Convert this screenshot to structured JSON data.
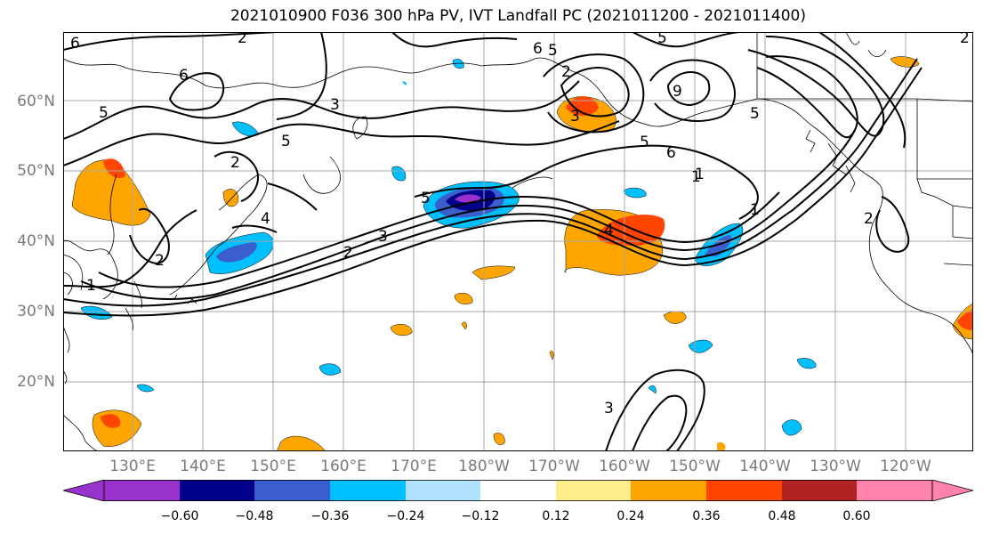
{
  "title": "2021010900 F036 300 hPa PV, IVT Landfall PC (2021011200 - 2021011400)",
  "lat_labels": [
    "60°N",
    "50°N",
    "40°N",
    "30°N",
    "20°N"
  ],
  "lon_labels": [
    "130°E",
    "140°E",
    "150°E",
    "160°E",
    "170°E",
    "180°W",
    "170°W",
    "160°W",
    "150°W",
    "140°W",
    "130°W",
    "120°W"
  ],
  "colorbar": {
    "ticks": [
      "−0.60",
      "−0.48",
      "−0.36",
      "−0.24",
      "−0.12",
      "0.12",
      "0.24",
      "0.36",
      "0.48",
      "0.60"
    ],
    "colors": [
      "#9932cc",
      "#00008b",
      "#3a5fcd",
      "#00bfff",
      "#b0e2ff",
      "#ffffff",
      "#ffec8b",
      "#ffa500",
      "#ff4500",
      "#b22222",
      "#ff82ab"
    ]
  },
  "contour_labels": [
    "6",
    "2",
    "5",
    "3",
    "5",
    "6",
    "2",
    "9",
    "5",
    "5",
    "6",
    "2",
    "3",
    "5",
    "1",
    "2",
    "4",
    "3",
    "2",
    "1",
    "5",
    "4",
    "2",
    "1",
    "6",
    "2",
    "3",
    "5",
    "1"
  ]
}
